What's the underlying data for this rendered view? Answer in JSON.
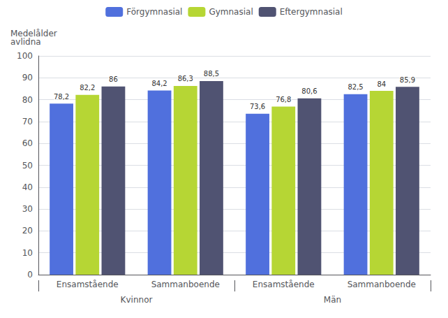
{
  "chart_data": {
    "type": "bar",
    "ylabel": "Medelålder\navlidna",
    "categories": [
      "Ensamstående",
      "Sammanboende",
      "Ensamstående",
      "Sammanboende"
    ],
    "annotations": [
      "Kvinnor",
      "Män"
    ],
    "series": [
      {
        "name": "Förgymnasial",
        "values": [
          78.2,
          84.2,
          73.6,
          82.5
        ],
        "value_labels": [
          "78,2",
          "84,2",
          "73,6",
          "82,5"
        ]
      },
      {
        "name": "Gymnasial",
        "values": [
          82.2,
          86.3,
          76.8,
          84.0
        ],
        "value_labels": [
          "82,2",
          "86,3",
          "76,8",
          "84"
        ]
      },
      {
        "name": "Eftergymnasial",
        "values": [
          86.0,
          88.5,
          80.6,
          85.9
        ],
        "value_labels": [
          "86",
          "88,5",
          "80,6",
          "85,9"
        ]
      }
    ],
    "ylim": [
      0,
      100
    ],
    "yticks": [
      0,
      10,
      20,
      30,
      40,
      50,
      60,
      70,
      80,
      90,
      100
    ],
    "grid": true,
    "legend": "top",
    "data_labels": true
  }
}
